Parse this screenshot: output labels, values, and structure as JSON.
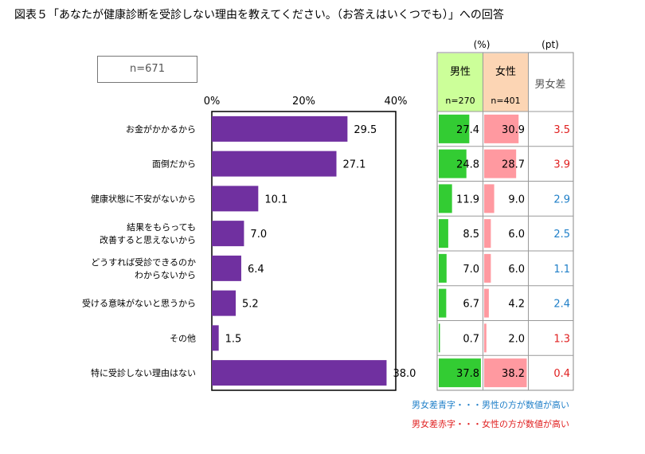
{
  "title": "図表５「あなたが健康診断を受診しない理由を教えてください。（お答えはいくつでも）」への回答",
  "sample_label": "n=671",
  "unit_percent": "(%)",
  "unit_pt": "(pt)",
  "columns": {
    "male": {
      "label": "男性",
      "n": "n=270"
    },
    "female": {
      "label": "女性",
      "n": "n=401"
    },
    "diff": {
      "label": "男女差"
    }
  },
  "legend": {
    "blue_note": "男女差青字・・・男性の方が数値が高い",
    "red_note": "男女差赤字・・・女性の方が数値が高い"
  },
  "colors": {
    "bar": "#7030a0",
    "male_header": "#ccff99",
    "female_header": "#fcd5b4",
    "male_bar": "#33cc33",
    "female_bar": "#ff99a0",
    "diff_blue": "#1f7fc8",
    "diff_red": "#e02020"
  },
  "chart_data": {
    "type": "bar",
    "orientation": "horizontal",
    "xlim": [
      0,
      40
    ],
    "ticks": [
      "0%",
      "20%",
      "40%"
    ],
    "categories": [
      [
        "お金がかかるから"
      ],
      [
        "面倒だから"
      ],
      [
        "健康状態に不安がないから"
      ],
      [
        "結果をもらっても",
        "改善すると思えないから"
      ],
      [
        "どうすれば受診できるのか",
        "わからないから"
      ],
      [
        "受ける意味がないと思うから"
      ],
      [
        "その他"
      ],
      [
        "特に受診しない理由はない"
      ]
    ],
    "values": [
      29.5,
      27.1,
      10.1,
      7.0,
      6.4,
      5.2,
      1.5,
      38.0
    ],
    "value_labels": [
      "29.5",
      "27.1",
      "10.1",
      "7.0",
      "6.4",
      "5.2",
      "1.5",
      "38.0"
    ],
    "male": [
      27.4,
      24.8,
      11.9,
      8.5,
      7.0,
      6.7,
      0.7,
      37.8
    ],
    "male_labels": [
      "27.4",
      "24.8",
      "11.9",
      "8.5",
      "7.0",
      "6.7",
      "0.7",
      "37.8"
    ],
    "female": [
      30.9,
      28.7,
      9.0,
      6.0,
      6.0,
      4.2,
      2.0,
      38.2
    ],
    "female_labels": [
      "30.9",
      "28.7",
      "9.0",
      "6.0",
      "6.0",
      "4.2",
      "2.0",
      "38.2"
    ],
    "diff_labels": [
      "3.5",
      "3.9",
      "2.9",
      "2.5",
      "1.1",
      "2.4",
      "1.3",
      "0.4"
    ],
    "diff_colors": [
      "red",
      "red",
      "blue",
      "blue",
      "blue",
      "blue",
      "red",
      "red"
    ]
  }
}
